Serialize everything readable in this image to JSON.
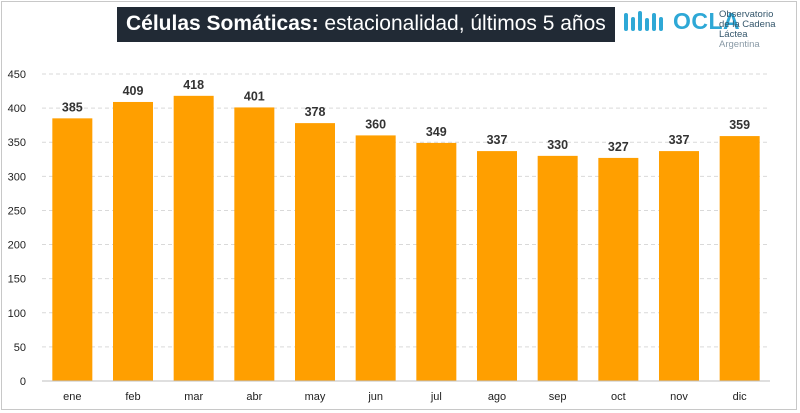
{
  "header": {
    "title_bold": "Células Somáticas:",
    "title_rest": " estacionalidad, últimos 5 años"
  },
  "logo": {
    "name": "OCLA",
    "line1": "Observatorio",
    "line2": "de la Cadena Láctea",
    "line3": "Argentina"
  },
  "chart_data": {
    "type": "bar",
    "title": "Células Somáticas: estacionalidad, últimos 5 años",
    "categories": [
      "ene",
      "feb",
      "mar",
      "abr",
      "may",
      "jun",
      "jul",
      "ago",
      "sep",
      "oct",
      "nov",
      "dic"
    ],
    "values": [
      385,
      409,
      418,
      401,
      378,
      360,
      349,
      337,
      330,
      327,
      337,
      359
    ],
    "ylim": [
      0,
      450
    ],
    "yticks": [
      0,
      50,
      100,
      150,
      200,
      250,
      300,
      350,
      400,
      450
    ],
    "grid": true,
    "bar_color": "#ff9f00",
    "grid_color": "#d9d9d9"
  }
}
